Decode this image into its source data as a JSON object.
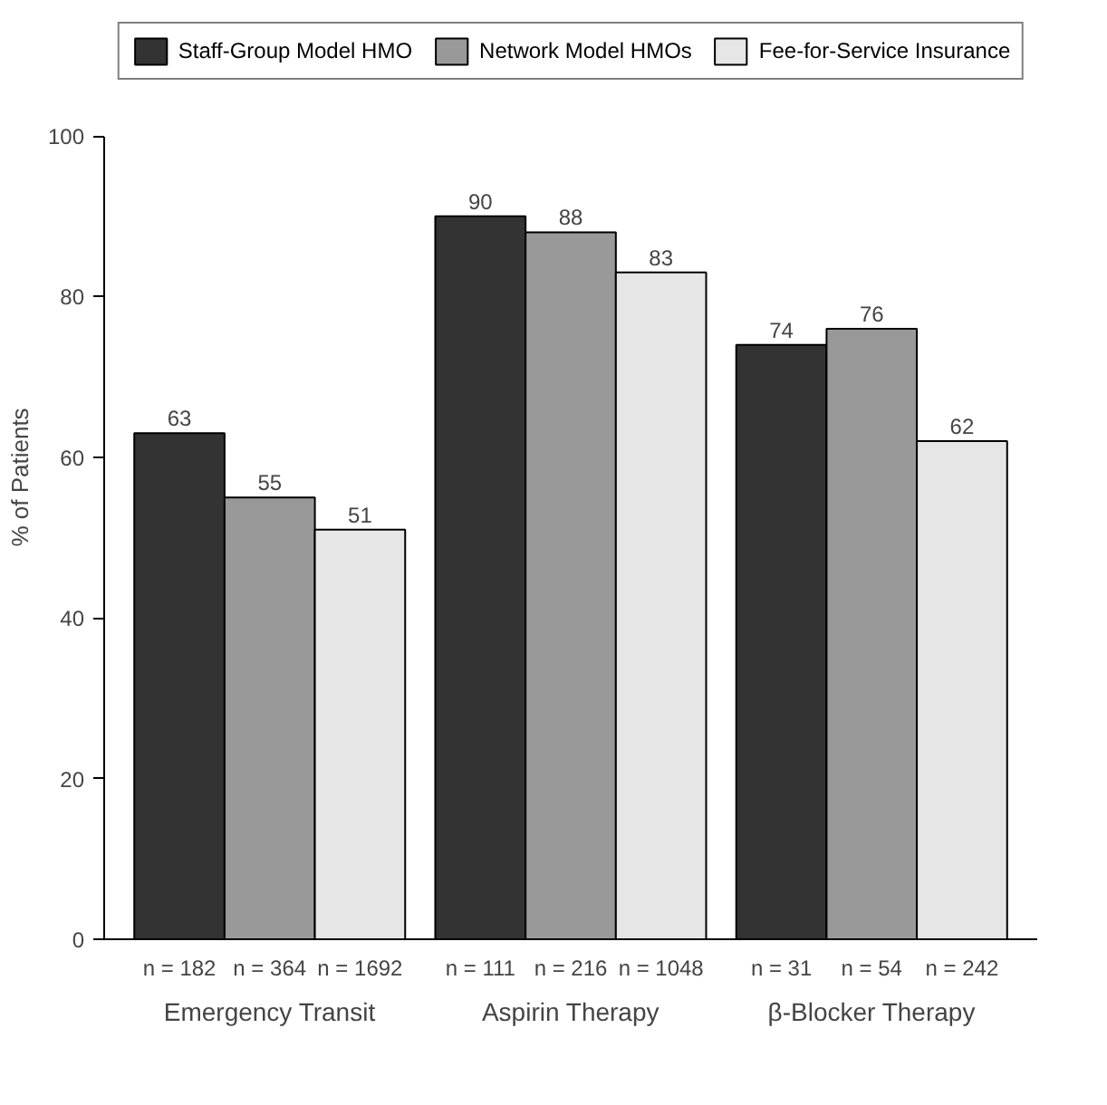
{
  "chart_data": {
    "type": "bar",
    "ylabel": "% of Patients",
    "categories": [
      "Emergency Transit",
      "Aspirin Therapy",
      "β-Blocker Therapy"
    ],
    "series": [
      {
        "name": "Staff-Group Model HMO",
        "color": "#333333",
        "values": [
          63,
          90,
          74
        ]
      },
      {
        "name": "Network Model HMOs",
        "color": "#999999",
        "values": [
          55,
          88,
          76
        ]
      },
      {
        "name": "Fee-for-Service Insurance",
        "color": "#e6e6e6",
        "values": [
          51,
          83,
          62
        ]
      }
    ],
    "annotations": [
      "n = 182",
      "n = 364",
      "n = 1692",
      "n = 111",
      "n = 216",
      "n = 1048",
      "n = 31",
      "n = 54",
      "n = 242"
    ],
    "ylim": [
      0,
      100
    ],
    "yticks": [
      0,
      20,
      40,
      60,
      80,
      100
    ],
    "data_labels": true,
    "legend": "top",
    "grid": false
  }
}
